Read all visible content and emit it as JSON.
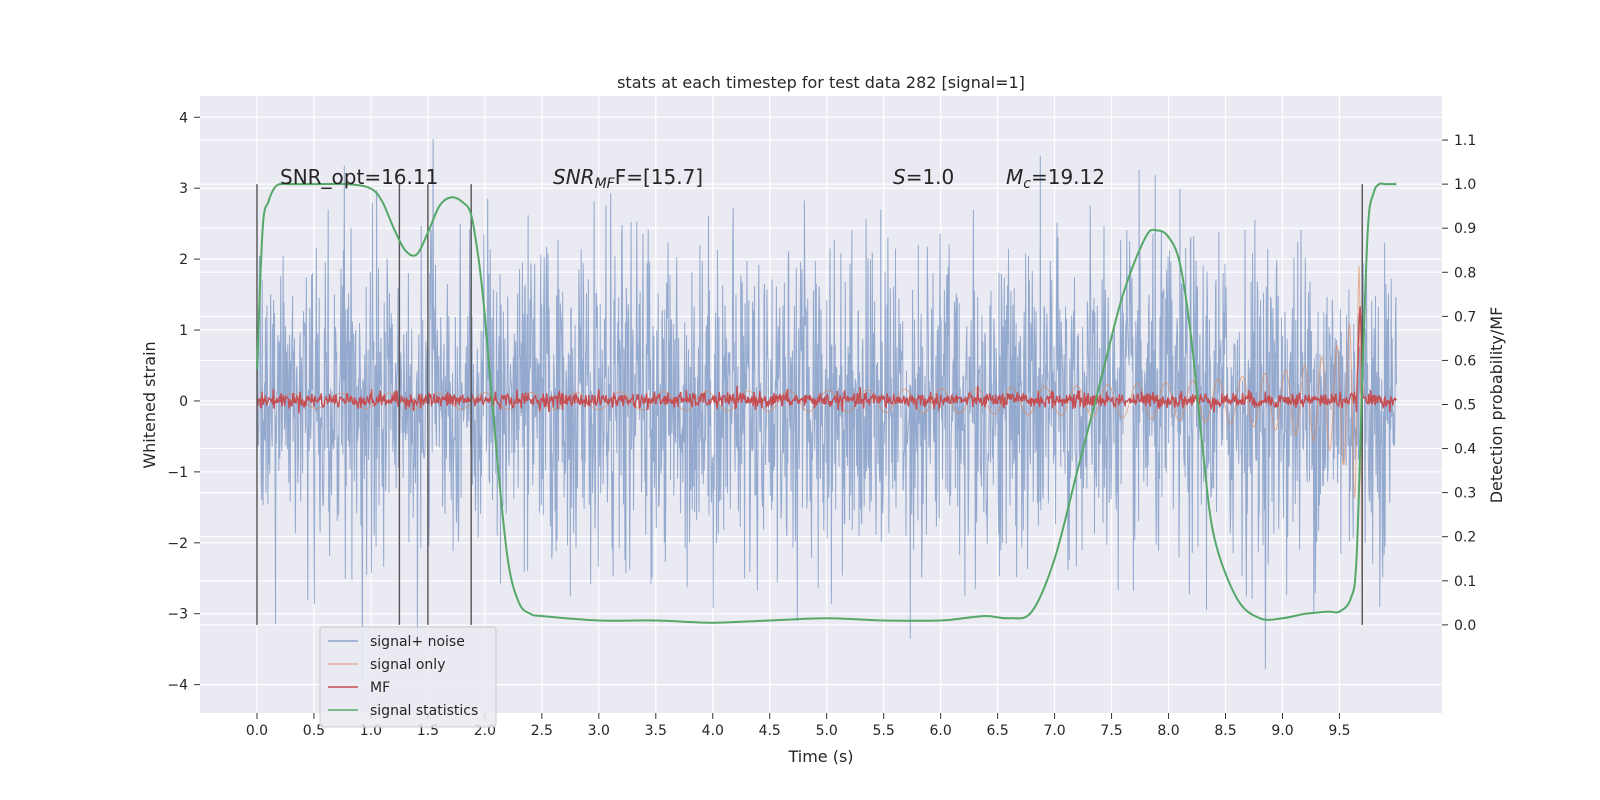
{
  "chart_data": {
    "type": "line",
    "title": "stats at each timestep for test data 282 [signal=1]",
    "xlabel": "Time (s)",
    "ylabel": "Whitened strain",
    "ylabel_right": "Detection probability/MF",
    "xlim": [
      -0.5,
      10.4
    ],
    "ylim": [
      -4.4,
      4.3
    ],
    "ylim_right": [
      -0.2,
      1.2
    ],
    "x_ticks": [
      "0.0",
      "0.5",
      "1.0",
      "1.5",
      "2.0",
      "2.5",
      "3.0",
      "3.5",
      "4.0",
      "4.5",
      "5.0",
      "5.5",
      "6.0",
      "6.5",
      "7.0",
      "7.5",
      "8.0",
      "8.5",
      "9.0",
      "9.5"
    ],
    "x_tick_values": [
      0,
      0.5,
      1,
      1.5,
      2,
      2.5,
      3,
      3.5,
      4,
      4.5,
      5,
      5.5,
      6,
      6.5,
      7,
      7.5,
      8,
      8.5,
      9,
      9.5
    ],
    "y_ticks": [
      "4",
      "3",
      "2",
      "1",
      "0",
      "−1",
      "−2",
      "−3",
      "−4"
    ],
    "y_tick_values": [
      4,
      3,
      2,
      1,
      0,
      -1,
      -2,
      -3,
      -4
    ],
    "y_ticks_right": [
      "1.1",
      "1.0",
      "0.9",
      "0.8",
      "0.7",
      "0.6",
      "0.5",
      "0.4",
      "0.3",
      "0.2",
      "0.1",
      "0.0"
    ],
    "y_tick_values_right": [
      1.1,
      1.0,
      0.9,
      0.8,
      0.7,
      0.6,
      0.5,
      0.4,
      0.3,
      0.2,
      0.1,
      0.0
    ],
    "grid": true,
    "legend_position": "bottom-left",
    "annotations": {
      "snr_opt": "SNR_opt=16.11",
      "snr_mf_base": "SNR",
      "snr_mf_sub": "MF",
      "snr_mf_rest": "F=[15.7]",
      "s_it": "S",
      "s_rest": "=1.0",
      "mc_it": "M",
      "mc_sub": "c",
      "mc_rest": "=19.12"
    },
    "vertical_lines_x": [
      0.0,
      1.25,
      1.5,
      1.88,
      9.7
    ],
    "series": [
      {
        "name": "signal+ noise",
        "axis": "left",
        "color": "#4c72b0",
        "noise_envelope": {
          "x_start": 0.0,
          "x_end": 10.0,
          "typical_amplitude": 1.2,
          "max": 3.9,
          "min": -4.0
        }
      },
      {
        "name": "signal only",
        "axis": "left",
        "color": "#dd8452",
        "chirp": {
          "x_start": 7.5,
          "x_end": 9.7,
          "peak_amplitude": 3.1
        }
      },
      {
        "name": "MF",
        "axis": "right",
        "color": "#c44e52",
        "baseline": 0.5,
        "spike": {
          "x": 9.68,
          "value": 0.72
        }
      },
      {
        "name": "signal statistics",
        "axis": "right",
        "color": "#55a868",
        "x": [
          0.0,
          0.05,
          0.1,
          0.15,
          0.2,
          0.3,
          0.5,
          0.8,
          1.0,
          1.1,
          1.2,
          1.3,
          1.4,
          1.5,
          1.6,
          1.7,
          1.8,
          1.88,
          1.95,
          2.0,
          2.1,
          2.2,
          2.3,
          2.4,
          2.5,
          3.0,
          3.5,
          4.0,
          4.5,
          5.0,
          5.5,
          6.0,
          6.2,
          6.4,
          6.6,
          6.8,
          7.0,
          7.2,
          7.4,
          7.6,
          7.8,
          7.9,
          8.0,
          8.1,
          8.2,
          8.3,
          8.4,
          8.6,
          8.8,
          9.0,
          9.2,
          9.4,
          9.5,
          9.6,
          9.65,
          9.7,
          9.75,
          9.8,
          9.85,
          9.9,
          10.0
        ],
        "y": [
          0.58,
          0.9,
          0.96,
          0.99,
          1.0,
          1.0,
          1.0,
          1.0,
          0.99,
          0.96,
          0.9,
          0.85,
          0.84,
          0.89,
          0.95,
          0.97,
          0.96,
          0.93,
          0.82,
          0.7,
          0.4,
          0.15,
          0.05,
          0.025,
          0.02,
          0.01,
          0.01,
          0.005,
          0.01,
          0.015,
          0.01,
          0.01,
          0.015,
          0.02,
          0.015,
          0.03,
          0.15,
          0.35,
          0.55,
          0.75,
          0.88,
          0.895,
          0.88,
          0.82,
          0.65,
          0.4,
          0.2,
          0.06,
          0.015,
          0.015,
          0.025,
          0.03,
          0.03,
          0.06,
          0.15,
          0.55,
          0.9,
          0.98,
          1.0,
          1.0,
          1.0
        ]
      }
    ]
  }
}
